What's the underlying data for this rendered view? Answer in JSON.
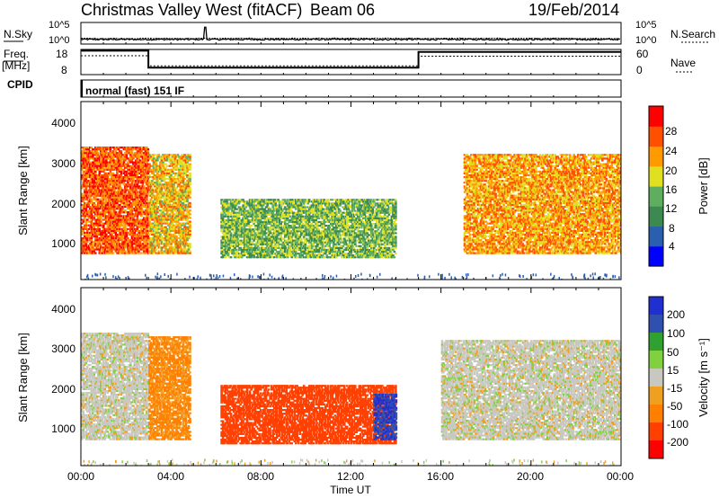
{
  "header": {
    "title": "Christmas Valley West (fitACF)",
    "beam": "Beam 06",
    "date": "19/Feb/2014"
  },
  "nsky_panel": {
    "label": "N.Sky",
    "right_label": "N.Search",
    "tick_top": "10^5",
    "tick_bottom": "10^0",
    "tick_top_right": "10^5",
    "tick_bottom_right": "10^0"
  },
  "freq_panel": {
    "label_line1": "Freq.",
    "label_line2": "[MHz]",
    "right_label": "Nave",
    "left_ticks": [
      "18",
      "8"
    ],
    "right_ticks": [
      "60",
      "0"
    ],
    "freq_series": [
      {
        "t": 0.0,
        "v": 17.5
      },
      {
        "t": 3.0,
        "v": 17.5
      },
      {
        "t": 3.0,
        "v": 10.8
      },
      {
        "t": 15.0,
        "v": 10.8
      },
      {
        "t": 15.0,
        "v": 17.0
      },
      {
        "t": 24.0,
        "v": 17.0
      }
    ]
  },
  "cpid": {
    "label": "CPID",
    "program": "normal (fast) 151 IF"
  },
  "power_panel": {
    "ylabel": "Slant Range [km]",
    "yticks": [
      "1000",
      "2000",
      "3000",
      "4000"
    ],
    "colorbar": {
      "label": "Power [dB]",
      "ticks": [
        "4",
        "8",
        "12",
        "16",
        "20",
        "24",
        "28"
      ],
      "colors": [
        "#0000ff",
        "#2a5fb0",
        "#3d8a50",
        "#5fae5f",
        "#e0e020",
        "#ff9a00",
        "#ff5000",
        "#ff0000"
      ]
    }
  },
  "velocity_panel": {
    "ylabel": "Slant Range [km]",
    "yticks": [
      "1000",
      "2000",
      "3000",
      "4000"
    ],
    "colorbar": {
      "label": "Velocity [m s⁻¹]",
      "ticks": [
        "200",
        "100",
        "50",
        "15",
        "-15",
        "-50",
        "-100",
        "-200"
      ],
      "colors": [
        "#2030d0",
        "#3050b0",
        "#30a030",
        "#80d040",
        "#c8c8c0",
        "#f0a020",
        "#ff8000",
        "#ff4000",
        "#ff0000"
      ]
    }
  },
  "xaxis": {
    "label": "Time UT",
    "ticks": [
      "00:00",
      "04:00",
      "08:00",
      "12:00",
      "16:00",
      "20:00",
      "00:00"
    ]
  },
  "chart_data": [
    {
      "type": "line",
      "title": "N.Sky / N.Search",
      "yscale": "log",
      "ylim": [
        1,
        100000
      ],
      "x_range_hours": [
        0,
        24
      ],
      "note_series": "noise level near 10^1 across the day with a spike near 05:30"
    },
    {
      "type": "line",
      "series": [
        {
          "name": "Freq. [MHz]",
          "x": [
            0,
            3,
            3,
            15,
            15,
            24
          ],
          "values": [
            17.5,
            17.5,
            10.8,
            10.8,
            17.0,
            17.0
          ]
        }
      ],
      "ylim": [
        8,
        18
      ],
      "x_range_hours": [
        0,
        24
      ]
    },
    {
      "type": "heatmap",
      "title": "Power [dB]",
      "xlabel": "Time UT",
      "ylabel": "Slant Range [km]",
      "xlim_hours": [
        0,
        24
      ],
      "ylim_km": [
        180,
        4500
      ],
      "color_scale": [
        4,
        28
      ],
      "regions": [
        {
          "t0": 0.0,
          "t1": 3.0,
          "r0": 800,
          "r1": 3400,
          "level": 26
        },
        {
          "t0": 3.0,
          "t1": 4.8,
          "r0": 800,
          "r1": 3200,
          "level": 20
        },
        {
          "t0": 6.2,
          "t1": 14.0,
          "r0": 700,
          "r1": 2100,
          "level": 14
        },
        {
          "t0": 17.0,
          "t1": 24.0,
          "r0": 800,
          "r1": 3200,
          "level": 22
        }
      ]
    },
    {
      "type": "heatmap",
      "title": "Velocity [m s⁻¹]",
      "xlabel": "Time UT",
      "ylabel": "Slant Range [km]",
      "xlim_hours": [
        0,
        24
      ],
      "ylim_km": [
        180,
        4500
      ],
      "color_scale": [
        -200,
        200
      ],
      "regions": [
        {
          "t0": 0.0,
          "t1": 3.0,
          "r0": 800,
          "r1": 3400,
          "level": 0
        },
        {
          "t0": 3.0,
          "t1": 4.8,
          "r0": 800,
          "r1": 3300,
          "level": -60
        },
        {
          "t0": 6.2,
          "t1": 14.0,
          "r0": 700,
          "r1": 2100,
          "level": -180
        },
        {
          "t0": 13.0,
          "t1": 14.0,
          "r0": 800,
          "r1": 1900,
          "level": 200
        },
        {
          "t0": 16.0,
          "t1": 24.0,
          "r0": 800,
          "r1": 3200,
          "level": 0
        }
      ]
    }
  ]
}
